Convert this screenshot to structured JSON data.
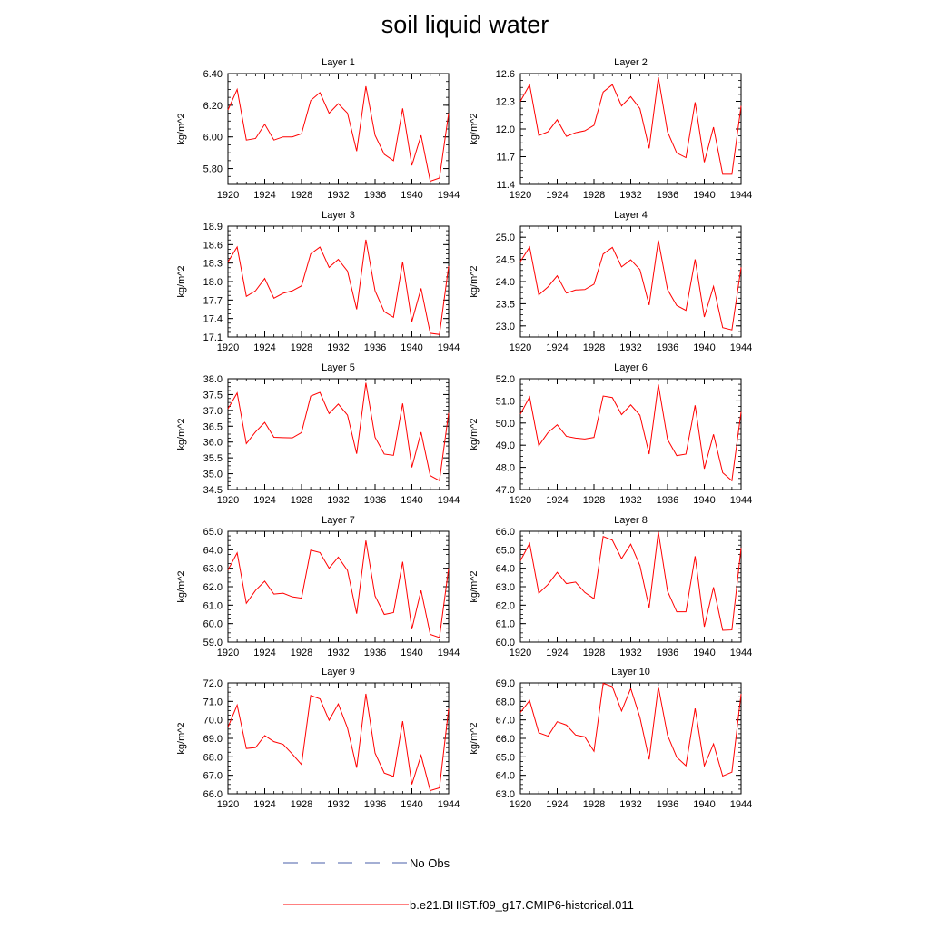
{
  "title": "soil liquid water",
  "legend": {
    "obs_label": "No Obs",
    "model_label": "b.e21.BHIST.f09_g17.CMIP6-historical.011",
    "model_color": "#ff0000",
    "obs_color": "#4a5fa8"
  },
  "chart_data": [
    {
      "type": "line",
      "title": "Layer 1",
      "xlabel": "",
      "ylabel": "kg/m^2",
      "xlim": [
        1920,
        1944
      ],
      "ylim": [
        5.7,
        6.4
      ],
      "xticks": [
        "1920",
        "1924",
        "1928",
        "1932",
        "1936",
        "1940",
        "1944"
      ],
      "yticks": [
        "5.80",
        "6.00",
        "6.20",
        "6.40"
      ],
      "x": [
        1920,
        1921,
        1922,
        1923,
        1924,
        1925,
        1926,
        1927,
        1928,
        1929,
        1930,
        1931,
        1932,
        1933,
        1934,
        1935,
        1936,
        1937,
        1938,
        1939,
        1940,
        1941,
        1942,
        1943,
        1944
      ],
      "series": [
        {
          "name": "b.e21.BHIST.f09_g17.CMIP6-historical.011",
          "values": [
            6.17,
            6.3,
            5.98,
            5.99,
            6.08,
            5.98,
            6.0,
            6.0,
            6.02,
            6.23,
            6.28,
            6.15,
            6.21,
            6.15,
            5.91,
            6.32,
            6.01,
            5.89,
            5.85,
            6.18,
            5.82,
            6.01,
            5.72,
            5.74,
            6.15
          ]
        }
      ]
    },
    {
      "type": "line",
      "title": "Layer 2",
      "xlabel": "",
      "ylabel": "kg/m^2",
      "xlim": [
        1920,
        1944
      ],
      "ylim": [
        11.4,
        12.6
      ],
      "xticks": [
        "1920",
        "1924",
        "1928",
        "1932",
        "1936",
        "1940",
        "1944"
      ],
      "yticks": [
        "11.4",
        "11.7",
        "12.0",
        "12.3",
        "12.6"
      ],
      "x": [
        1920,
        1921,
        1922,
        1923,
        1924,
        1925,
        1926,
        1927,
        1928,
        1929,
        1930,
        1931,
        1932,
        1933,
        1934,
        1935,
        1936,
        1937,
        1938,
        1939,
        1940,
        1941,
        1942,
        1943,
        1944
      ],
      "series": [
        {
          "name": "b.e21.BHIST.f09_g17.CMIP6-historical.011",
          "values": [
            12.3,
            12.48,
            11.93,
            11.97,
            12.1,
            11.92,
            11.96,
            11.98,
            12.04,
            12.4,
            12.48,
            12.25,
            12.35,
            12.22,
            11.79,
            12.56,
            11.97,
            11.74,
            11.69,
            12.29,
            11.64,
            12.02,
            11.51,
            11.51,
            12.25
          ]
        }
      ]
    },
    {
      "type": "line",
      "title": "Layer 3",
      "xlabel": "",
      "ylabel": "kg/m^2",
      "xlim": [
        1920,
        1944
      ],
      "ylim": [
        17.1,
        18.9
      ],
      "xticks": [
        "1920",
        "1924",
        "1928",
        "1932",
        "1936",
        "1940",
        "1944"
      ],
      "yticks": [
        "17.1",
        "17.4",
        "17.7",
        "18.0",
        "18.3",
        "18.6",
        "18.9"
      ],
      "x": [
        1920,
        1921,
        1922,
        1923,
        1924,
        1925,
        1926,
        1927,
        1928,
        1929,
        1930,
        1931,
        1932,
        1933,
        1934,
        1935,
        1936,
        1937,
        1938,
        1939,
        1940,
        1941,
        1942,
        1943,
        1944
      ],
      "series": [
        {
          "name": "b.e21.BHIST.f09_g17.CMIP6-historical.011",
          "values": [
            18.32,
            18.56,
            17.76,
            17.85,
            18.05,
            17.73,
            17.81,
            17.85,
            17.93,
            18.45,
            18.56,
            18.23,
            18.36,
            18.17,
            17.55,
            18.68,
            17.85,
            17.51,
            17.42,
            18.32,
            17.35,
            17.89,
            17.16,
            17.14,
            18.25
          ]
        }
      ]
    },
    {
      "type": "line",
      "title": "Layer 4",
      "xlabel": "",
      "ylabel": "kg/m^2",
      "xlim": [
        1920,
        1944
      ],
      "ylim": [
        22.75,
        25.25
      ],
      "xticks": [
        "1920",
        "1924",
        "1928",
        "1932",
        "1936",
        "1940",
        "1944"
      ],
      "yticks": [
        "23.0",
        "23.5",
        "24.0",
        "24.5",
        "25.0"
      ],
      "x": [
        1920,
        1921,
        1922,
        1923,
        1924,
        1925,
        1926,
        1927,
        1928,
        1929,
        1930,
        1931,
        1932,
        1933,
        1934,
        1935,
        1936,
        1937,
        1938,
        1939,
        1940,
        1941,
        1942,
        1943,
        1944
      ],
      "series": [
        {
          "name": "b.e21.BHIST.f09_g17.CMIP6-historical.011",
          "values": [
            24.45,
            24.78,
            23.7,
            23.88,
            24.13,
            23.74,
            23.81,
            23.82,
            23.94,
            24.62,
            24.77,
            24.33,
            24.49,
            24.27,
            23.47,
            24.93,
            23.82,
            23.46,
            23.35,
            24.5,
            23.2,
            23.89,
            22.96,
            22.91,
            24.32
          ]
        }
      ]
    },
    {
      "type": "line",
      "title": "Layer 5",
      "xlabel": "",
      "ylabel": "kg/m^2",
      "xlim": [
        1920,
        1944
      ],
      "ylim": [
        34.5,
        38.0
      ],
      "xticks": [
        "1920",
        "1924",
        "1928",
        "1932",
        "1936",
        "1940",
        "1944"
      ],
      "yticks": [
        "34.5",
        "35.0",
        "35.5",
        "36.0",
        "36.5",
        "37.0",
        "37.5",
        "38.0"
      ],
      "x": [
        1920,
        1921,
        1922,
        1923,
        1924,
        1925,
        1926,
        1927,
        1928,
        1929,
        1930,
        1931,
        1932,
        1933,
        1934,
        1935,
        1936,
        1937,
        1938,
        1939,
        1940,
        1941,
        1942,
        1943,
        1944
      ],
      "series": [
        {
          "name": "b.e21.BHIST.f09_g17.CMIP6-historical.011",
          "values": [
            37.05,
            37.55,
            35.95,
            36.32,
            36.62,
            36.15,
            36.14,
            36.13,
            36.3,
            37.45,
            37.57,
            36.9,
            37.2,
            36.85,
            35.63,
            37.87,
            36.15,
            35.62,
            35.58,
            37.22,
            35.2,
            36.31,
            34.94,
            34.78,
            36.92
          ]
        }
      ]
    },
    {
      "type": "line",
      "title": "Layer 6",
      "xlabel": "",
      "ylabel": "kg/m^2",
      "xlim": [
        1920,
        1944
      ],
      "ylim": [
        47.0,
        52.0
      ],
      "xticks": [
        "1920",
        "1924",
        "1928",
        "1932",
        "1936",
        "1940",
        "1944"
      ],
      "yticks": [
        "47.0",
        "48.0",
        "49.0",
        "50.0",
        "51.0",
        "52.0"
      ],
      "x": [
        1920,
        1921,
        1922,
        1923,
        1924,
        1925,
        1926,
        1927,
        1928,
        1929,
        1930,
        1931,
        1932,
        1933,
        1934,
        1935,
        1936,
        1937,
        1938,
        1939,
        1940,
        1941,
        1942,
        1943,
        1944
      ],
      "series": [
        {
          "name": "b.e21.BHIST.f09_g17.CMIP6-historical.011",
          "values": [
            50.4,
            51.18,
            48.98,
            49.57,
            49.92,
            49.4,
            49.32,
            49.28,
            49.35,
            51.22,
            51.15,
            50.38,
            50.82,
            50.35,
            48.6,
            51.74,
            49.26,
            48.53,
            48.6,
            50.8,
            47.94,
            49.49,
            47.76,
            47.4,
            50.5
          ]
        }
      ]
    },
    {
      "type": "line",
      "title": "Layer 7",
      "xlabel": "",
      "ylabel": "kg/m^2",
      "xlim": [
        1920,
        1944
      ],
      "ylim": [
        59.0,
        65.0
      ],
      "xticks": [
        "1920",
        "1924",
        "1928",
        "1932",
        "1936",
        "1940",
        "1944"
      ],
      "yticks": [
        "59.0",
        "60.0",
        "61.0",
        "62.0",
        "63.0",
        "64.0",
        "65.0"
      ],
      "x": [
        1920,
        1921,
        1922,
        1923,
        1924,
        1925,
        1926,
        1927,
        1928,
        1929,
        1930,
        1931,
        1932,
        1933,
        1934,
        1935,
        1936,
        1937,
        1938,
        1939,
        1940,
        1941,
        1942,
        1943,
        1944
      ],
      "series": [
        {
          "name": "b.e21.BHIST.f09_g17.CMIP6-historical.011",
          "values": [
            62.9,
            63.83,
            61.1,
            61.8,
            62.3,
            61.6,
            61.65,
            61.45,
            61.38,
            63.98,
            63.85,
            63.0,
            63.6,
            62.88,
            60.54,
            64.5,
            61.5,
            60.5,
            60.6,
            63.35,
            59.7,
            61.8,
            59.42,
            59.25,
            63.0
          ]
        }
      ]
    },
    {
      "type": "line",
      "title": "Layer 8",
      "xlabel": "",
      "ylabel": "kg/m^2",
      "xlim": [
        1920,
        1944
      ],
      "ylim": [
        60.0,
        66.0
      ],
      "xticks": [
        "1920",
        "1924",
        "1928",
        "1932",
        "1936",
        "1940",
        "1944"
      ],
      "yticks": [
        "60.0",
        "61.0",
        "62.0",
        "63.0",
        "64.0",
        "65.0",
        "66.0"
      ],
      "x": [
        1920,
        1921,
        1922,
        1923,
        1924,
        1925,
        1926,
        1927,
        1928,
        1929,
        1930,
        1931,
        1932,
        1933,
        1934,
        1935,
        1936,
        1937,
        1938,
        1939,
        1940,
        1941,
        1942,
        1943,
        1944
      ],
      "series": [
        {
          "name": "b.e21.BHIST.f09_g17.CMIP6-historical.011",
          "values": [
            64.4,
            65.35,
            62.65,
            63.12,
            63.78,
            63.17,
            63.25,
            62.69,
            62.35,
            65.72,
            65.52,
            64.52,
            65.3,
            64.14,
            61.86,
            65.97,
            62.76,
            61.64,
            61.64,
            64.65,
            60.83,
            62.97,
            60.64,
            60.66,
            65.1
          ]
        }
      ]
    },
    {
      "type": "line",
      "title": "Layer 9",
      "xlabel": "",
      "ylabel": "kg/m^2",
      "xlim": [
        1920,
        1944
      ],
      "ylim": [
        66.0,
        72.0
      ],
      "xticks": [
        "1920",
        "1924",
        "1928",
        "1932",
        "1936",
        "1940",
        "1944"
      ],
      "yticks": [
        "66.0",
        "67.0",
        "68.0",
        "69.0",
        "70.0",
        "71.0",
        "72.0"
      ],
      "x": [
        1920,
        1921,
        1922,
        1923,
        1924,
        1925,
        1926,
        1927,
        1928,
        1929,
        1930,
        1931,
        1932,
        1933,
        1934,
        1935,
        1936,
        1937,
        1938,
        1939,
        1940,
        1941,
        1942,
        1943,
        1944
      ],
      "series": [
        {
          "name": "b.e21.BHIST.f09_g17.CMIP6-historical.011",
          "values": [
            69.6,
            70.8,
            68.45,
            68.5,
            69.15,
            68.82,
            68.68,
            68.15,
            67.58,
            71.32,
            71.14,
            69.98,
            70.86,
            69.56,
            67.41,
            71.41,
            68.2,
            67.12,
            66.94,
            69.93,
            66.51,
            68.08,
            66.17,
            66.32,
            70.6
          ]
        }
      ]
    },
    {
      "type": "line",
      "title": "Layer 10",
      "xlabel": "",
      "ylabel": "kg/m^2",
      "xlim": [
        1920,
        1944
      ],
      "ylim": [
        63.0,
        69.0
      ],
      "xticks": [
        "1920",
        "1924",
        "1928",
        "1932",
        "1936",
        "1940",
        "1944"
      ],
      "yticks": [
        "63.0",
        "64.0",
        "65.0",
        "66.0",
        "67.0",
        "68.0",
        "69.0"
      ],
      "x": [
        1920,
        1921,
        1922,
        1923,
        1924,
        1925,
        1926,
        1927,
        1928,
        1929,
        1930,
        1931,
        1932,
        1933,
        1934,
        1935,
        1936,
        1937,
        1938,
        1939,
        1940,
        1941,
        1942,
        1943,
        1944
      ],
      "series": [
        {
          "name": "b.e21.BHIST.f09_g17.CMIP6-historical.011",
          "values": [
            67.4,
            68.05,
            66.3,
            66.12,
            66.9,
            66.72,
            66.18,
            66.08,
            65.3,
            68.98,
            68.8,
            67.48,
            68.7,
            67.13,
            64.86,
            68.79,
            66.17,
            64.98,
            64.52,
            67.62,
            64.51,
            65.7,
            63.96,
            64.17,
            68.4
          ]
        }
      ]
    }
  ]
}
